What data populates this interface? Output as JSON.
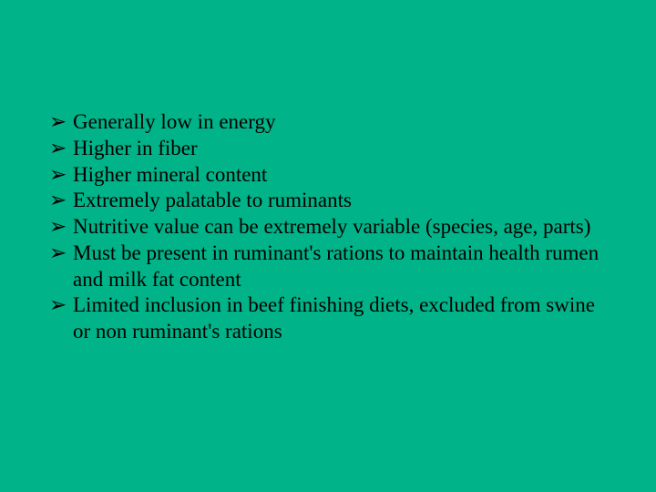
{
  "slide": {
    "background_color": "#00b388",
    "text_color": "#000000",
    "font_family": "Times New Roman",
    "font_size_pt": 18,
    "bullet_marker": "➢",
    "bullets": [
      "Generally low in energy",
      "Higher in fiber",
      "Higher mineral content",
      "Extremely palatable to ruminants",
      "Nutritive value can be extremely variable (species, age, parts)",
      "Must be present in ruminant's rations to maintain health rumen and milk fat content",
      "Limited inclusion in beef finishing diets, excluded from swine or non ruminant's rations"
    ]
  }
}
